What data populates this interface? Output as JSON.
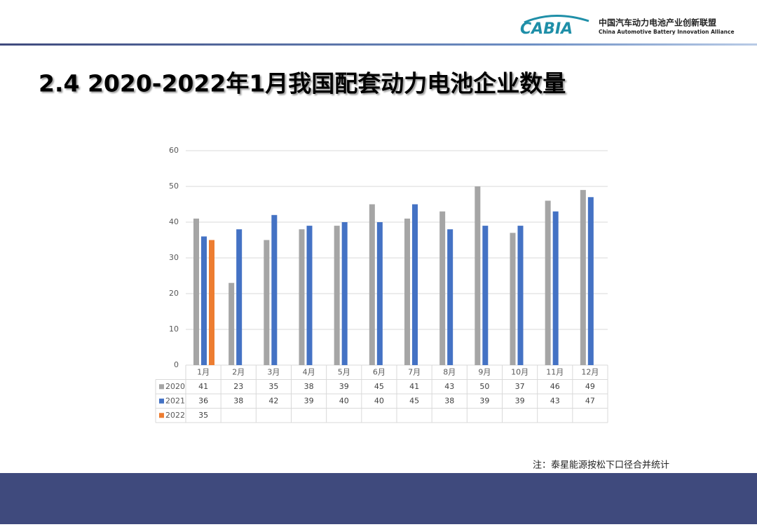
{
  "header": {
    "logo_text": "CABIA",
    "org_name_cn": "中国汽车动力电池产业创新联盟",
    "org_name_en": "China Automotive Battery Innovation Alliance"
  },
  "title": "2.4 2020-2022年1月我国配套动力电池企业数量",
  "note": "注：泰星能源按松下口径合并统计",
  "chart_data": {
    "type": "bar",
    "categories": [
      "1月",
      "2月",
      "3月",
      "4月",
      "5月",
      "6月",
      "7月",
      "8月",
      "9月",
      "10月",
      "11月",
      "12月"
    ],
    "series": [
      {
        "name": "2020",
        "color": "#a5a5a5",
        "values": [
          41,
          23,
          35,
          38,
          39,
          45,
          41,
          43,
          50,
          37,
          46,
          49
        ]
      },
      {
        "name": "2021",
        "color": "#4472c4",
        "values": [
          36,
          38,
          42,
          39,
          40,
          40,
          45,
          38,
          39,
          39,
          43,
          47
        ]
      },
      {
        "name": "2022",
        "color": "#ed7d31",
        "values": [
          35,
          null,
          null,
          null,
          null,
          null,
          null,
          null,
          null,
          null,
          null,
          null
        ]
      }
    ],
    "ylim": [
      0,
      60
    ],
    "yticks": [
      0,
      10,
      20,
      30,
      40,
      50,
      60
    ],
    "grid": true,
    "data_table": true
  }
}
